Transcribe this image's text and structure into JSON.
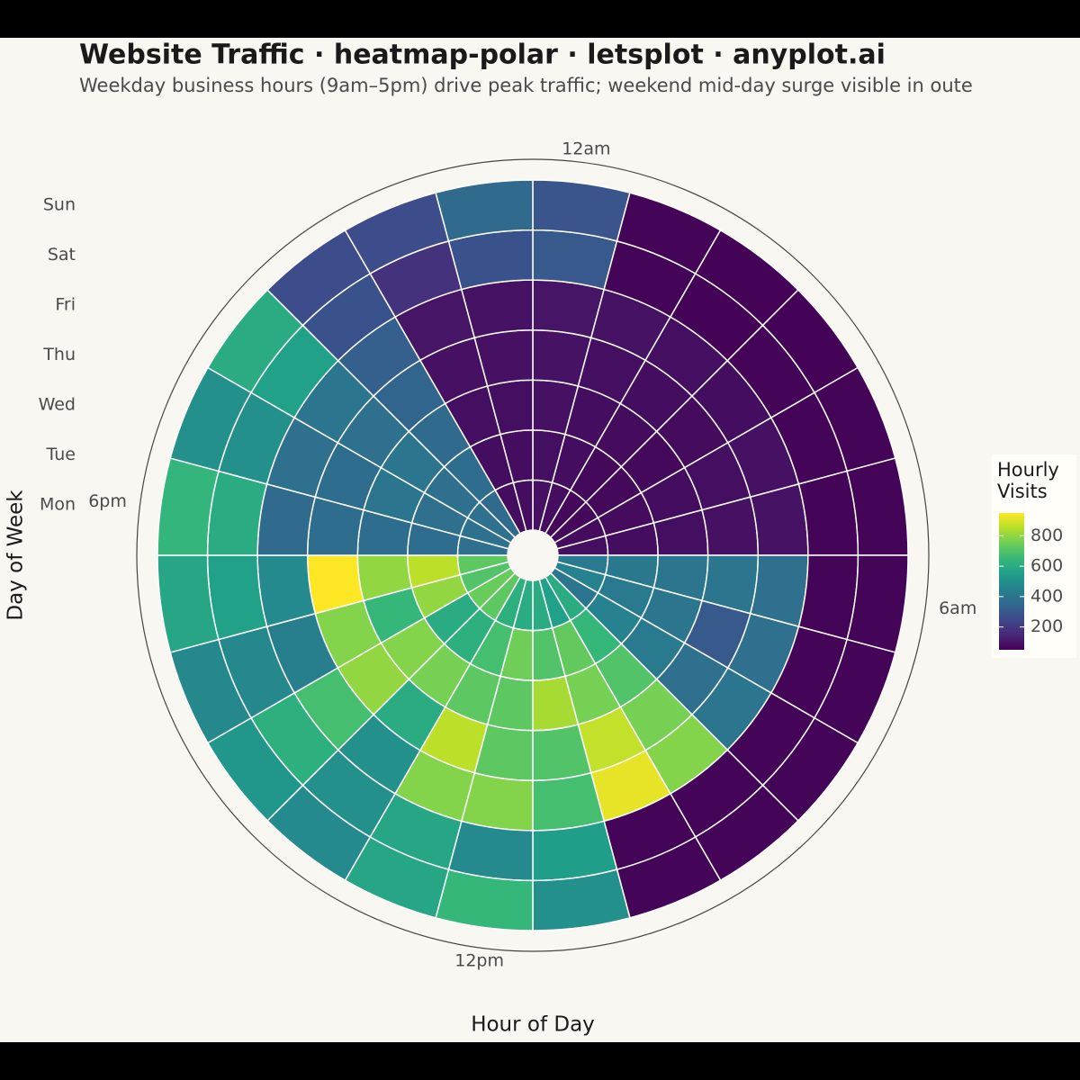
{
  "chart_data": {
    "type": "heatmap-polar",
    "title": "Website Traffic · heatmap-polar · letsplot · anyplot.ai",
    "subtitle": "Weekday business hours (9am–5pm) drive peak traffic; weekend mid-day surge visible in oute",
    "x_label": "Hour of Day",
    "y_label": "Day of Week",
    "categories": [
      "12am",
      null,
      null,
      null,
      null,
      null,
      "6am",
      null,
      null,
      null,
      null,
      null,
      "12pm",
      null,
      null,
      null,
      null,
      null,
      "6pm",
      null,
      null,
      null,
      null,
      null
    ],
    "days": [
      "Mon",
      "Tue",
      "Wed",
      "Thu",
      "Fri",
      "Sat",
      "Sun"
    ],
    "values": [
      [
        90,
        80,
        70,
        70,
        75,
        85,
        420,
        450,
        400,
        600,
        560,
        600,
        600,
        620,
        720,
        740,
        700,
        720,
        380,
        380,
        380,
        360,
        80,
        80
      ],
      [
        85,
        80,
        70,
        70,
        75,
        80,
        410,
        420,
        450,
        650,
        730,
        700,
        750,
        680,
        620,
        600,
        800,
        860,
        370,
        380,
        380,
        370,
        80,
        80
      ],
      [
        90,
        80,
        75,
        70,
        80,
        85,
        400,
        400,
        420,
        700,
        760,
        830,
        720,
        720,
        760,
        780,
        650,
        800,
        370,
        400,
        400,
        360,
        85,
        85
      ],
      [
        95,
        85,
        80,
        75,
        85,
        90,
        400,
        300,
        380,
        760,
        870,
        700,
        720,
        860,
        600,
        800,
        780,
        950,
        370,
        370,
        380,
        340,
        90,
        90
      ],
      [
        100,
        95,
        85,
        80,
        90,
        95,
        380,
        380,
        400,
        780,
        920,
        680,
        780,
        780,
        500,
        680,
        440,
        480,
        360,
        380,
        400,
        320,
        100,
        95
      ],
      [
        300,
        60,
        55,
        60,
        60,
        60,
        60,
        60,
        60,
        60,
        60,
        550,
        480,
        580,
        500,
        620,
        470,
        560,
        600,
        500,
        560,
        280,
        180,
        280
      ],
      [
        290,
        60,
        55,
        55,
        60,
        60,
        60,
        60,
        60,
        60,
        60,
        500,
        650,
        580,
        480,
        520,
        470,
        580,
        640,
        500,
        600,
        260,
        260,
        360
      ]
    ],
    "legend_title": [
      "Hourly",
      "Visits"
    ],
    "clim": [
      50,
      950
    ],
    "legend_ticks": [
      200,
      400,
      600,
      800
    ],
    "colormap": [
      "#440154",
      "#482878",
      "#3e4989",
      "#31688e",
      "#26828e",
      "#1f9e89",
      "#35b779",
      "#6ece58",
      "#b5de2b",
      "#fde725"
    ]
  }
}
